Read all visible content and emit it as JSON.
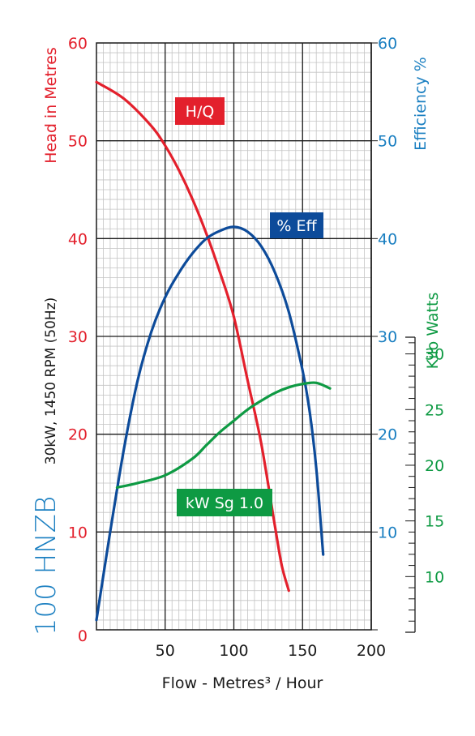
{
  "chart_data": {
    "type": "line",
    "model_label": "100 HNZB",
    "spec_label": "30kW, 1450 RPM (50Hz)",
    "xlabel": "Flow - Metres³ / Hour",
    "xlim": [
      0,
      200
    ],
    "x_ticks": [
      "50",
      "100",
      "150",
      "200"
    ],
    "x_origin_label": "0",
    "left_axis": {
      "label": "Head in Metres",
      "ylim": [
        0,
        60
      ],
      "ticks": [
        "10",
        "20",
        "30",
        "40",
        "50",
        "60"
      ]
    },
    "right_axis": {
      "label": "Efficiency %",
      "ylim": [
        0,
        60
      ],
      "ticks": [
        "10",
        "20",
        "30",
        "40",
        "50",
        "60"
      ]
    },
    "power_axis": {
      "label": "Kilo Watts",
      "ylim": [
        5,
        31.5
      ],
      "ticks": [
        "10",
        "15",
        "20",
        "25",
        "30"
      ]
    },
    "grid": true,
    "series": [
      {
        "name": "H/Q",
        "axis": "left",
        "color": "#e3202c",
        "x": [
          0,
          20,
          40,
          50,
          60,
          70,
          80,
          90,
          100,
          110,
          120,
          130,
          135,
          140
        ],
        "y": [
          56,
          54.3,
          51.5,
          49.5,
          47,
          44,
          40.5,
          36.5,
          32,
          25.5,
          19,
          10.5,
          6.5,
          4
        ]
      },
      {
        "name": "% Eff",
        "axis": "right",
        "color": "#0d4b9a",
        "x": [
          0,
          10,
          20,
          30,
          40,
          50,
          60,
          70,
          80,
          90,
          100,
          110,
          120,
          130,
          140,
          150,
          155,
          160,
          164,
          165
        ],
        "y": [
          1,
          10,
          18.5,
          25.5,
          30.5,
          34,
          36.5,
          38.5,
          40,
          40.8,
          41.2,
          40.7,
          39.2,
          36.5,
          32.5,
          26.5,
          22.5,
          16.5,
          9.5,
          7.7
        ]
      },
      {
        "name": "kW Sg 1.0",
        "axis": "power",
        "color": "#0e9a43",
        "x": [
          15,
          30,
          50,
          70,
          80,
          90,
          100,
          110,
          120,
          130,
          140,
          150,
          160,
          170
        ],
        "y": [
          18.0,
          18.4,
          19.1,
          20.6,
          21.8,
          23.0,
          24.0,
          25.0,
          25.8,
          26.5,
          27.0,
          27.3,
          27.4,
          26.9
        ]
      }
    ]
  }
}
